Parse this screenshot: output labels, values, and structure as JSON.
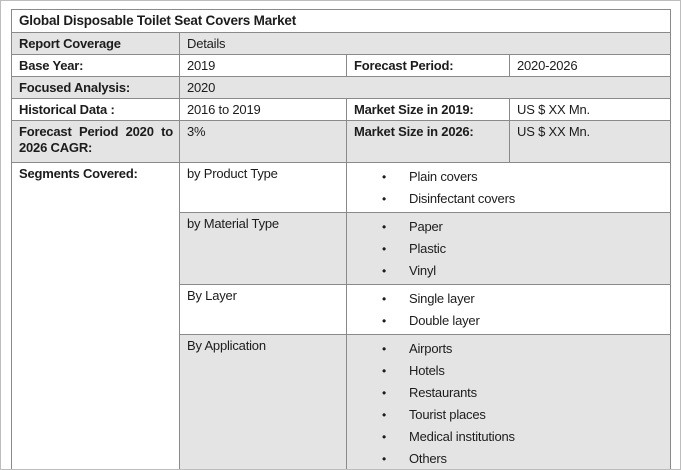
{
  "colors": {
    "row_shade": "#e4e4e4",
    "border": "#8a8a8a",
    "text": "#1c1c1c",
    "background": "#ffffff"
  },
  "table": {
    "title": "Global Disposable Toilet Seat Covers Market",
    "bullet_glyph": "•",
    "info_rows": [
      {
        "label": "Report Coverage",
        "value": "Details"
      },
      {
        "label": "Base Year:",
        "value": "2019",
        "label2": "Forecast Period:",
        "value2": "2020-2026"
      },
      {
        "label": "Focused Analysis:",
        "value": "2020"
      },
      {
        "label": "Historical Data :",
        "value": "2016 to 2019",
        "label2": "Market Size in 2019:",
        "value2": "US $ XX Mn."
      },
      {
        "label": "Forecast Period 2020 to 2026 CAGR:",
        "value": "3%",
        "label2": "Market Size in 2026:",
        "value2": "US $ XX Mn."
      }
    ],
    "segments": {
      "label": "Segments Covered:",
      "groups": [
        {
          "name": "by Product Type",
          "items": [
            "Plain covers",
            "Disinfectant covers"
          ]
        },
        {
          "name": "by Material Type",
          "items": [
            "Paper",
            "Plastic",
            "Vinyl"
          ]
        },
        {
          "name": "By Layer",
          "items": [
            "Single layer",
            "Double layer"
          ]
        },
        {
          "name": "By Application",
          "items": [
            "Airports",
            "Hotels",
            "Restaurants",
            "Tourist places",
            "Medical institutions",
            "Others"
          ]
        }
      ]
    }
  }
}
